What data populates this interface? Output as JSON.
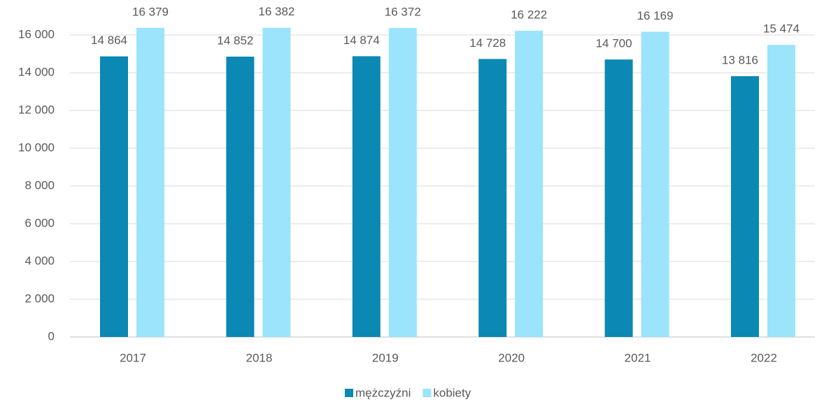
{
  "chart_data": {
    "type": "bar",
    "categories": [
      "2017",
      "2018",
      "2019",
      "2020",
      "2021",
      "2022"
    ],
    "series": [
      {
        "name": "mężczyźni",
        "color": "#0b88b3",
        "values": [
          14864,
          14852,
          14874,
          14728,
          14700,
          13816
        ],
        "value_labels": [
          "14 864",
          "14 852",
          "14 874",
          "14 728",
          "14 700",
          "13 816"
        ]
      },
      {
        "name": "kobiety",
        "color": "#9be4fb",
        "values": [
          16379,
          16382,
          16372,
          16222,
          16169,
          15474
        ],
        "value_labels": [
          "16 379",
          "16 382",
          "16 372",
          "16 222",
          "16 169",
          "15 474"
        ]
      }
    ],
    "ylim": [
      0,
      16000
    ],
    "yticks": [
      0,
      {
        "value": 2000,
        "label": "2 000"
      },
      {
        "value": 4000,
        "label": "4 000"
      },
      {
        "value": 6000,
        "label": "6 000"
      },
      {
        "value": 8000,
        "label": "8 000"
      },
      {
        "value": 10000,
        "label": "10 000"
      },
      {
        "value": 12000,
        "label": "12 000"
      },
      {
        "value": 14000,
        "label": "14 000"
      },
      {
        "value": 16000,
        "label": "16 000"
      }
    ],
    "grid": true,
    "legend": "bottom"
  }
}
